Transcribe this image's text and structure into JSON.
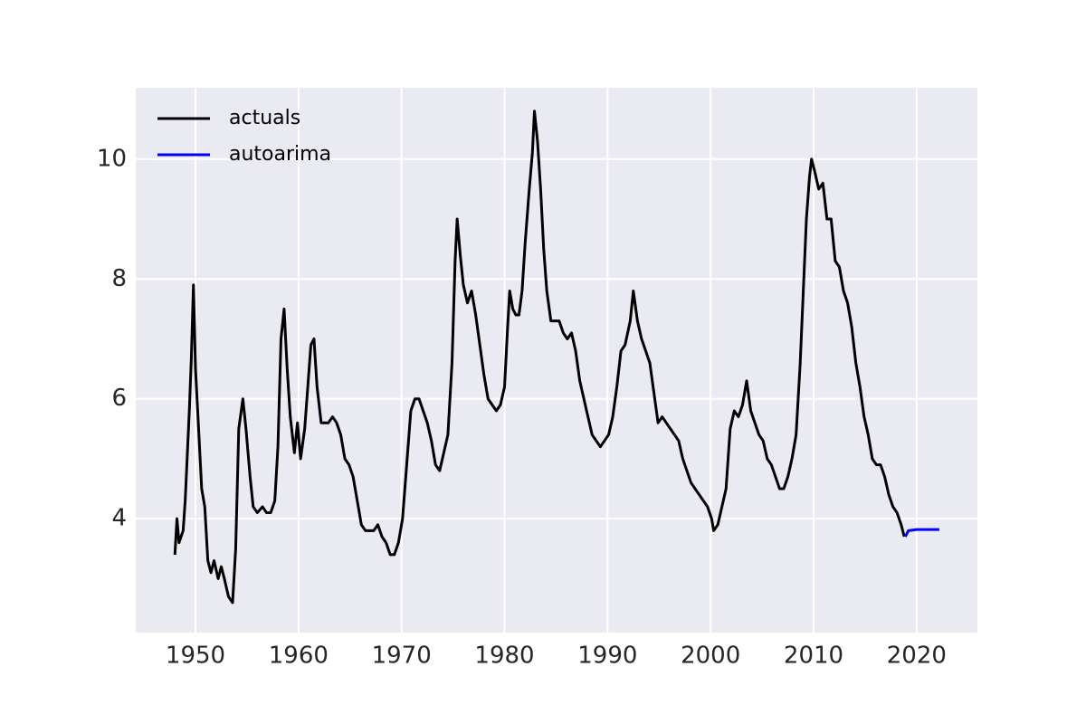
{
  "chart_data": {
    "type": "line",
    "xlim": [
      1944.2,
      2025.9
    ],
    "ylim": [
      2.1,
      11.19
    ],
    "xticks": [
      1950,
      1960,
      1970,
      1980,
      1990,
      2000,
      2010,
      2020
    ],
    "yticks": [
      4,
      6,
      8,
      10
    ],
    "grid": true,
    "legend": "upper left",
    "series": [
      {
        "name": "actuals",
        "color": "#000000",
        "x": [
          1948.0,
          1948.2,
          1948.4,
          1948.8,
          1949.0,
          1949.4,
          1949.6,
          1949.8,
          1950.0,
          1950.3,
          1950.6,
          1950.9,
          1951.2,
          1951.5,
          1951.8,
          1952.2,
          1952.5,
          1952.8,
          1953.2,
          1953.6,
          1953.9,
          1954.2,
          1954.6,
          1954.9,
          1955.3,
          1955.6,
          1956.0,
          1956.5,
          1956.9,
          1957.3,
          1957.7,
          1958.0,
          1958.3,
          1958.6,
          1958.9,
          1959.2,
          1959.6,
          1959.9,
          1960.2,
          1960.6,
          1960.9,
          1961.2,
          1961.5,
          1961.8,
          1962.2,
          1962.6,
          1962.9,
          1963.3,
          1963.7,
          1964.1,
          1964.5,
          1964.9,
          1965.3,
          1965.7,
          1966.1,
          1966.5,
          1966.9,
          1967.3,
          1967.7,
          1968.1,
          1968.5,
          1968.9,
          1969.3,
          1969.7,
          1970.1,
          1970.5,
          1970.9,
          1971.3,
          1971.7,
          1972.1,
          1972.5,
          1972.9,
          1973.3,
          1973.7,
          1974.1,
          1974.5,
          1974.9,
          1975.2,
          1975.4,
          1975.7,
          1976.0,
          1976.4,
          1976.8,
          1977.2,
          1977.6,
          1978.0,
          1978.4,
          1978.8,
          1979.2,
          1979.6,
          1980.0,
          1980.3,
          1980.5,
          1980.8,
          1981.1,
          1981.4,
          1981.7,
          1982.0,
          1982.4,
          1982.7,
          1982.9,
          1983.2,
          1983.5,
          1983.8,
          1984.1,
          1984.5,
          1984.9,
          1985.3,
          1985.7,
          1986.1,
          1986.5,
          1986.9,
          1987.3,
          1987.7,
          1988.1,
          1988.5,
          1988.9,
          1989.3,
          1989.7,
          1990.1,
          1990.5,
          1990.9,
          1991.3,
          1991.7,
          1992.2,
          1992.5,
          1992.9,
          1993.3,
          1993.7,
          1994.1,
          1994.5,
          1994.9,
          1995.3,
          1995.7,
          1996.1,
          1996.5,
          1996.9,
          1997.3,
          1997.7,
          1998.1,
          1998.5,
          1998.9,
          1999.3,
          1999.7,
          2000.1,
          2000.3,
          2000.7,
          2001.1,
          2001.5,
          2001.9,
          2002.3,
          2002.7,
          2003.1,
          2003.5,
          2003.9,
          2004.3,
          2004.7,
          2005.1,
          2005.5,
          2005.9,
          2006.3,
          2006.7,
          2007.1,
          2007.5,
          2007.9,
          2008.3,
          2008.7,
          2009.0,
          2009.3,
          2009.6,
          2009.8,
          2010.1,
          2010.5,
          2010.9,
          2011.3,
          2011.7,
          2012.1,
          2012.5,
          2012.9,
          2013.3,
          2013.7,
          2014.1,
          2014.5,
          2014.9,
          2015.3,
          2015.7,
          2016.1,
          2016.5,
          2016.9,
          2017.3,
          2017.7,
          2018.1,
          2018.5,
          2018.8
        ],
        "values": [
          3.4,
          4.0,
          3.6,
          3.8,
          4.3,
          5.8,
          6.7,
          7.9,
          6.5,
          5.5,
          4.5,
          4.2,
          3.3,
          3.1,
          3.3,
          3.0,
          3.2,
          3.0,
          2.7,
          2.6,
          3.5,
          5.5,
          6.0,
          5.5,
          4.7,
          4.2,
          4.1,
          4.2,
          4.1,
          4.1,
          4.3,
          5.2,
          7.0,
          7.5,
          6.5,
          5.7,
          5.1,
          5.6,
          5.0,
          5.5,
          6.2,
          6.9,
          7.0,
          6.2,
          5.6,
          5.6,
          5.6,
          5.7,
          5.6,
          5.4,
          5.0,
          4.9,
          4.7,
          4.3,
          3.9,
          3.8,
          3.8,
          3.8,
          3.9,
          3.7,
          3.6,
          3.4,
          3.4,
          3.6,
          4.0,
          4.9,
          5.8,
          6.0,
          6.0,
          5.8,
          5.6,
          5.3,
          4.9,
          4.8,
          5.1,
          5.4,
          6.6,
          8.3,
          9.0,
          8.4,
          7.9,
          7.6,
          7.8,
          7.4,
          6.9,
          6.4,
          6.0,
          5.9,
          5.8,
          5.9,
          6.2,
          7.2,
          7.8,
          7.5,
          7.4,
          7.4,
          7.8,
          8.6,
          9.5,
          10.1,
          10.8,
          10.3,
          9.5,
          8.5,
          7.8,
          7.3,
          7.3,
          7.3,
          7.1,
          7.0,
          7.1,
          6.8,
          6.3,
          6.0,
          5.7,
          5.4,
          5.3,
          5.2,
          5.3,
          5.4,
          5.7,
          6.2,
          6.8,
          6.9,
          7.3,
          7.8,
          7.3,
          7.0,
          6.8,
          6.6,
          6.1,
          5.6,
          5.7,
          5.6,
          5.5,
          5.4,
          5.3,
          5.0,
          4.8,
          4.6,
          4.5,
          4.4,
          4.3,
          4.2,
          4.0,
          3.8,
          3.9,
          4.2,
          4.5,
          5.5,
          5.8,
          5.7,
          5.9,
          6.3,
          5.8,
          5.6,
          5.4,
          5.3,
          5.0,
          4.9,
          4.7,
          4.5,
          4.5,
          4.7,
          5.0,
          5.4,
          6.6,
          7.8,
          9.0,
          9.7,
          10.0,
          9.8,
          9.5,
          9.6,
          9.0,
          9.0,
          8.3,
          8.2,
          7.8,
          7.6,
          7.2,
          6.6,
          6.2,
          5.7,
          5.4,
          5.0,
          4.9,
          4.9,
          4.7,
          4.4,
          4.2,
          4.1,
          3.9,
          3.7
        ]
      },
      {
        "name": "autoarima",
        "color": "#0000ff",
        "x": [
          2018.9,
          2019.2,
          2020.0,
          2022.2
        ],
        "values": [
          3.7,
          3.8,
          3.82,
          3.82
        ]
      }
    ]
  }
}
